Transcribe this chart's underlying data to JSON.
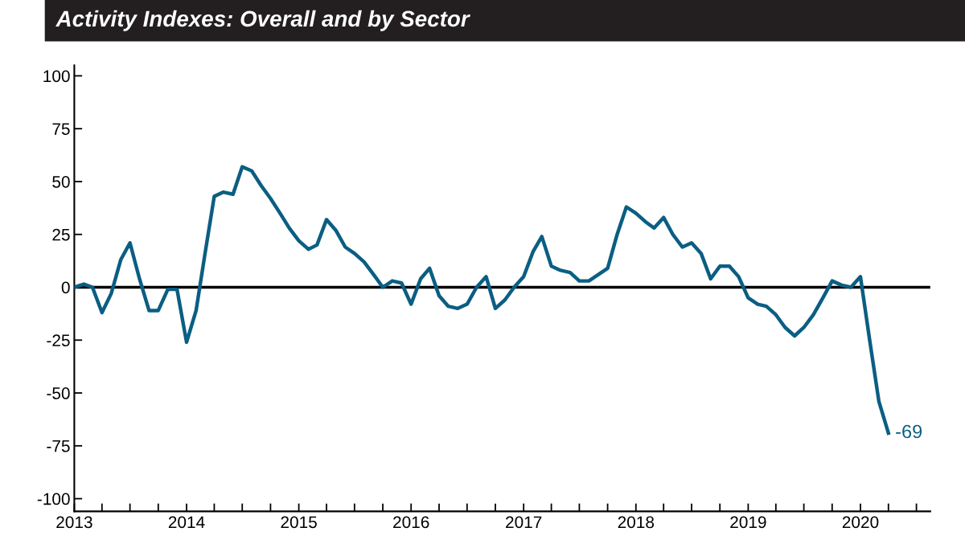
{
  "chart_data": {
    "type": "line",
    "title": "Activity Indexes: Overall and by Sector",
    "x": [
      "2013-01",
      "2013-02",
      "2013-03",
      "2013-04",
      "2013-05",
      "2013-06",
      "2013-07",
      "2013-08",
      "2013-09",
      "2013-10",
      "2013-11",
      "2013-12",
      "2014-01",
      "2014-02",
      "2014-03",
      "2014-04",
      "2014-05",
      "2014-06",
      "2014-07",
      "2014-08",
      "2014-09",
      "2014-10",
      "2014-11",
      "2014-12",
      "2015-01",
      "2015-02",
      "2015-03",
      "2015-04",
      "2015-05",
      "2015-06",
      "2015-07",
      "2015-08",
      "2015-09",
      "2015-10",
      "2015-11",
      "2015-12",
      "2016-01",
      "2016-02",
      "2016-03",
      "2016-04",
      "2016-05",
      "2016-06",
      "2016-07",
      "2016-08",
      "2016-09",
      "2016-10",
      "2016-11",
      "2016-12",
      "2017-01",
      "2017-02",
      "2017-03",
      "2017-04",
      "2017-05",
      "2017-06",
      "2017-07",
      "2017-08",
      "2017-09",
      "2017-10",
      "2017-11",
      "2017-12",
      "2018-01",
      "2018-02",
      "2018-03",
      "2018-04",
      "2018-05",
      "2018-06",
      "2018-07",
      "2018-08",
      "2018-09",
      "2018-10",
      "2018-11",
      "2018-12",
      "2019-01",
      "2019-02",
      "2019-03",
      "2019-04",
      "2019-05",
      "2019-06",
      "2019-07",
      "2019-08",
      "2019-09",
      "2019-10",
      "2019-11",
      "2019-12",
      "2020-01",
      "2020-02",
      "2020-03",
      "2020-04"
    ],
    "series": [
      {
        "color": "#0b5e82",
        "values": [
          0,
          1.5,
          0,
          -12,
          -3,
          13,
          21,
          4,
          -11,
          -11,
          -1,
          -1,
          -26,
          -11,
          15,
          43,
          45,
          44,
          57,
          55,
          48,
          42,
          35,
          28,
          22,
          18,
          20,
          32,
          27,
          19,
          16,
          12,
          6,
          0,
          3,
          2,
          -8,
          4,
          9,
          -4,
          -9,
          -10,
          -8,
          0,
          5,
          -10,
          -6,
          0,
          5,
          17,
          24,
          10,
          8,
          7,
          3,
          3,
          6,
          9,
          25,
          38,
          35,
          31,
          28,
          33,
          25,
          19,
          21,
          16,
          4,
          10,
          10,
          5,
          -5,
          -8,
          -9,
          -13,
          -19,
          -23,
          -19,
          -13,
          -5,
          3,
          1,
          0,
          5,
          -26,
          -54,
          -69
        ]
      }
    ],
    "annotations": [
      {
        "text": "-69",
        "x": "2020-04",
        "y": -69
      }
    ],
    "ref_lines": [
      {
        "axis": "y",
        "value": 0,
        "color": "#000000"
      }
    ],
    "xlim": [
      "2013-01-01",
      "2020-08-15"
    ],
    "xticks": [
      {
        "value": "2013-01-01",
        "label": "2013"
      },
      {
        "value": "2013-04-01",
        "label": null
      },
      {
        "value": "2013-07-01",
        "label": null
      },
      {
        "value": "2013-10-01",
        "label": null
      },
      {
        "value": "2014-01-01",
        "label": "2014"
      },
      {
        "value": "2014-04-01",
        "label": null
      },
      {
        "value": "2014-07-01",
        "label": null
      },
      {
        "value": "2014-10-01",
        "label": null
      },
      {
        "value": "2015-01-01",
        "label": "2015"
      },
      {
        "value": "2015-04-01",
        "label": null
      },
      {
        "value": "2015-07-01",
        "label": null
      },
      {
        "value": "2015-10-01",
        "label": null
      },
      {
        "value": "2016-01-01",
        "label": "2016"
      },
      {
        "value": "2016-04-01",
        "label": null
      },
      {
        "value": "2016-07-01",
        "label": null
      },
      {
        "value": "2016-10-01",
        "label": null
      },
      {
        "value": "2017-01-01",
        "label": "2017"
      },
      {
        "value": "2017-04-01",
        "label": null
      },
      {
        "value": "2017-07-01",
        "label": null
      },
      {
        "value": "2017-10-01",
        "label": null
      },
      {
        "value": "2018-01-01",
        "label": "2018"
      },
      {
        "value": "2018-04-01",
        "label": null
      },
      {
        "value": "2018-07-01",
        "label": null
      },
      {
        "value": "2018-10-01",
        "label": null
      },
      {
        "value": "2019-01-01",
        "label": "2019"
      },
      {
        "value": "2019-04-01",
        "label": null
      },
      {
        "value": "2019-07-01",
        "label": null
      },
      {
        "value": "2019-10-01",
        "label": null
      },
      {
        "value": "2020-01-01",
        "label": "2020"
      },
      {
        "value": "2020-04-01",
        "label": null
      },
      {
        "value": "2020-07-01",
        "label": null
      }
    ],
    "ylim": [
      -106,
      105
    ],
    "yticks": [
      -100,
      -75,
      -50,
      -25,
      0,
      25,
      50,
      75,
      100
    ],
    "grid": false,
    "legend": false,
    "marker": "none",
    "line_style": "solid"
  }
}
